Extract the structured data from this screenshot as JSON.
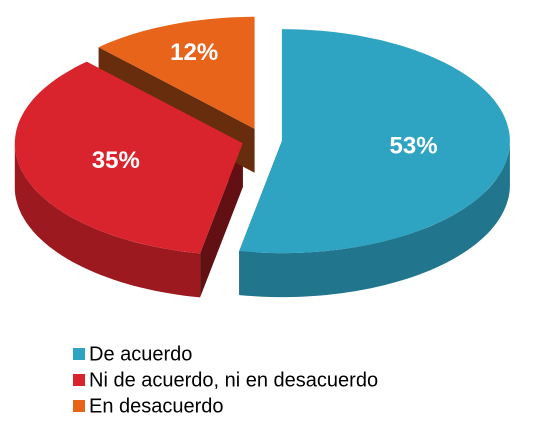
{
  "chart_data": {
    "type": "pie",
    "categories": [
      "De acuerdo",
      "Ni de acuerdo, ni en desacuerdo",
      "En desacuerdo"
    ],
    "values": [
      53,
      35,
      12
    ],
    "value_labels": [
      "53%",
      "35%",
      "12%"
    ],
    "colors": [
      "#2ea3c2",
      "#d9232d",
      "#e8641b"
    ],
    "legend": "bottom-left"
  }
}
